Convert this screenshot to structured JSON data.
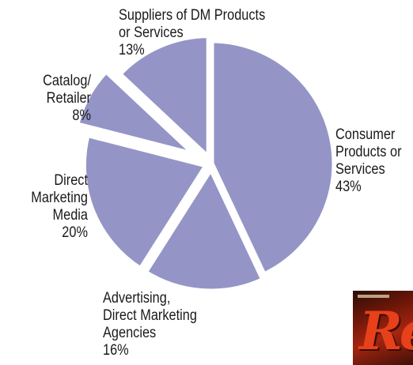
{
  "chart_data": {
    "type": "pie",
    "title": "",
    "slices": [
      {
        "name": "Consumer Products or Services",
        "value": 43,
        "label_lines": [
          "Consumer",
          "Products or",
          "Services"
        ],
        "pct_text": "43%"
      },
      {
        "name": "Advertising, Direct Marketing Agencies",
        "value": 16,
        "label_lines": [
          "Advertising,",
          "Direct Marketing",
          "Agencies"
        ],
        "pct_text": "16%"
      },
      {
        "name": "Direct Marketing Media",
        "value": 20,
        "label_lines": [
          "Direct",
          "Marketing",
          "Media"
        ],
        "pct_text": "20%"
      },
      {
        "name": "Catalog/ Retailer",
        "value": 8,
        "label_lines": [
          "Catalog/",
          "Retailer"
        ],
        "pct_text": "8%"
      },
      {
        "name": "Suppliers of DM Products or Services",
        "value": 13,
        "label_lines": [
          "Suppliers of DM Products",
          "or Services"
        ],
        "pct_text": "13%"
      }
    ],
    "slice_color": "#9495c6",
    "separator_color": "#ffffff",
    "start_angle_deg": 0,
    "direction": "clockwise",
    "legend": "none"
  },
  "thumbnail": {
    "icon": "magazine-cover-thumbnail",
    "colors": [
      "#a52510",
      "#e8401a"
    ]
  }
}
